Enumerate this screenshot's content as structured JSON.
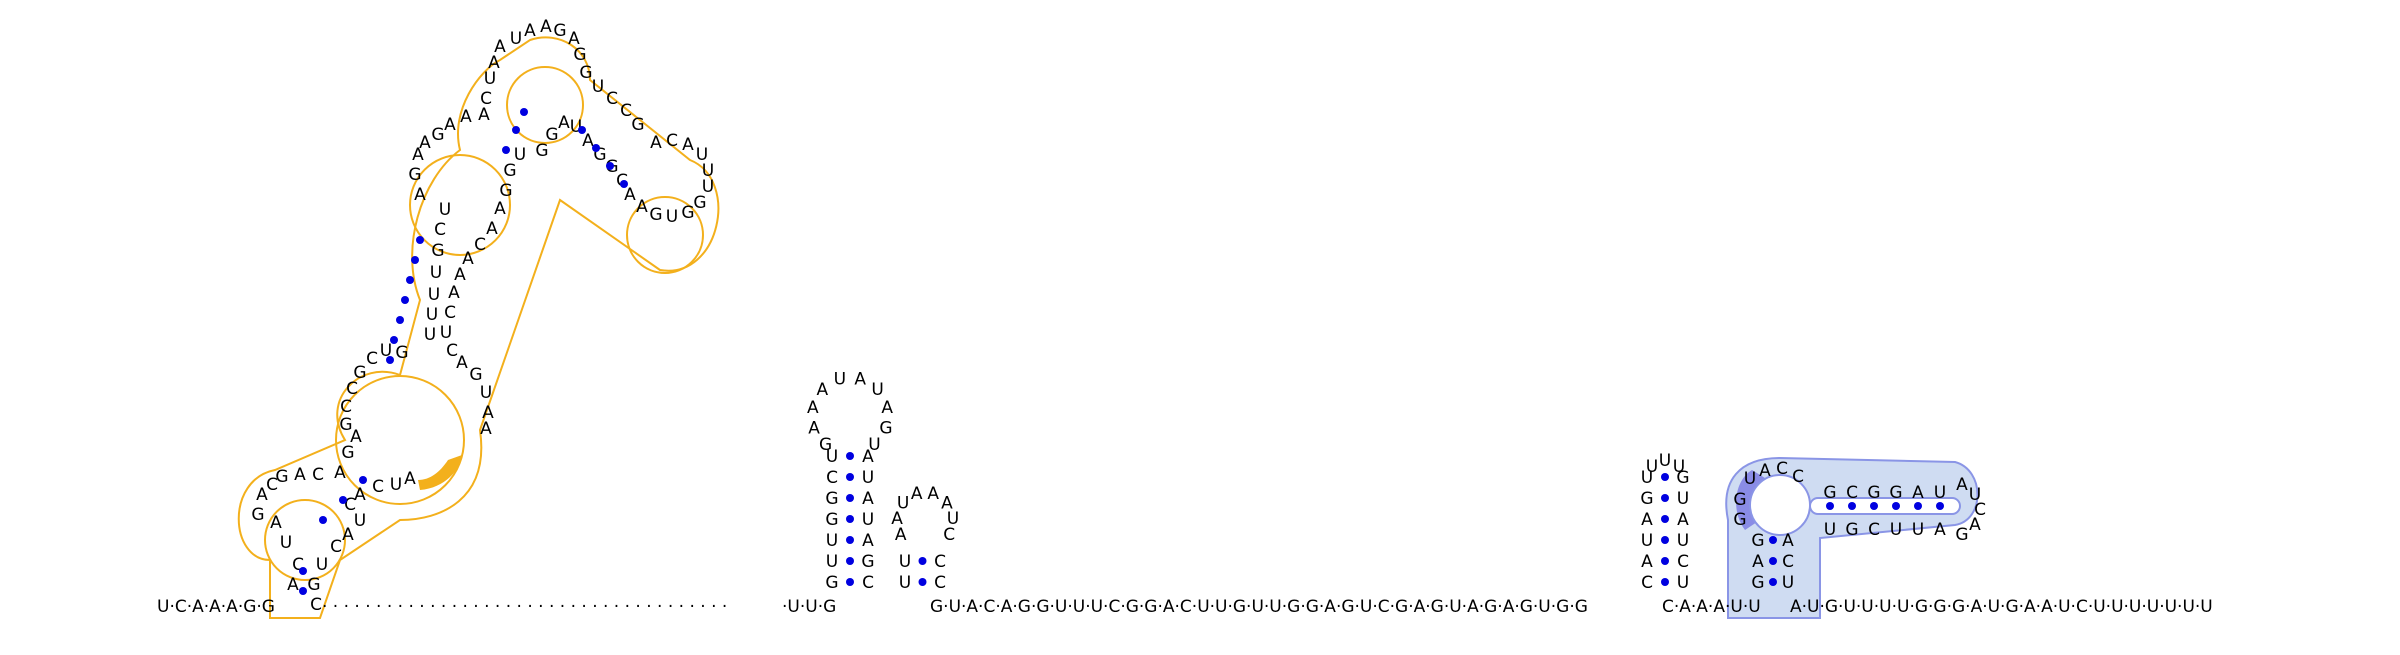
{
  "backbone": {
    "seg1": "U·C·A·A·A·G·G",
    "dots": "·  ·  ·  ·  ·  ·  ·  ·  ·  ·  ·  ·  ·  ·  ·  ·  ·  ·  ·  ·  ·  ·  ·  ·  ·  ·  ·  ·  ·  ·  ·  ·  ·  ·  ·  ·  ·  ·",
    "seg2": "·U·U·G",
    "seg3": "G·U·A·C·A·G·G·U·U·U·C·G·G·A·C·U·U·G·U·U·G·G·A·G·U·C·G·A·G·U·A·G·A·G·U·G·G",
    "seg4": "C·A·A·A·U·U",
    "seg5": "A·U·G·U·U·U·U·G·G·G·A·U·G·A·A·U·C·U·U·U·U·U·U·U"
  },
  "colors": {
    "pair_dot": "#0000e0",
    "orange": "#f3b01c",
    "blue_fill": "#cfdcf2",
    "blue_dark": "#8a8ce6"
  }
}
